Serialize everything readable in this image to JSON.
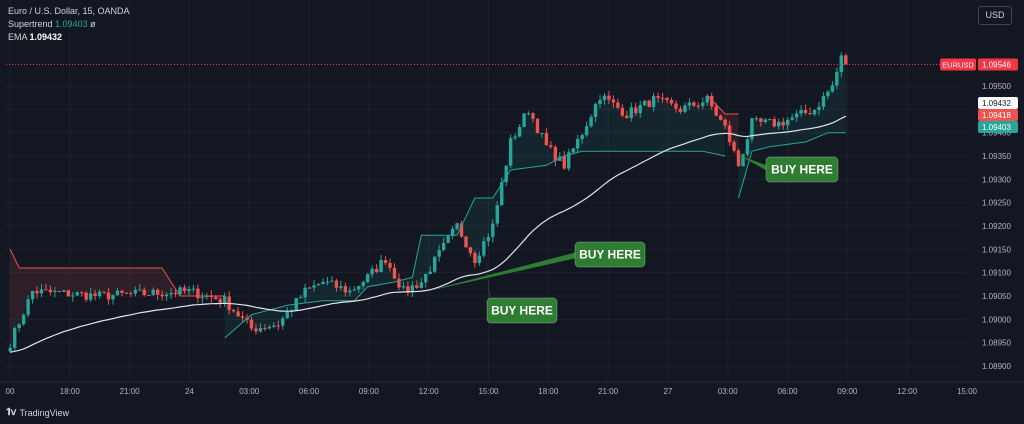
{
  "legend": {
    "instrument": "Euro / U.S. Dollar, 15, OANDA",
    "supertrend_label": "Supertrend",
    "supertrend_value": "1.09403",
    "supertrend_extra": "ø",
    "ema_label": "EMA",
    "ema_value": "1.09432"
  },
  "currency_button": "USD",
  "branding": {
    "logo_icon": "tradingview-logo-icon",
    "name": "TradingView"
  },
  "colors": {
    "background": "#131722",
    "up": "#26a69a",
    "down": "#ef5350",
    "ema": "#e0e3eb",
    "annotation": "#2e7d32",
    "price_line": "#f23645"
  },
  "chart_data": {
    "type": "candlestick",
    "symbol_tag": "EURUSD",
    "current_price": "1.09546",
    "ylim": [
      1.0887,
      1.0962
    ],
    "y_ticks": [
      "1.09500",
      "1.09450",
      "1.09400",
      "1.09350",
      "1.09300",
      "1.09250",
      "1.09200",
      "1.09150",
      "1.09100",
      "1.09050",
      "1.09000",
      "1.08950",
      "1.08900"
    ],
    "x_ticks": [
      "00",
      "18:00",
      "21:00",
      "24",
      "03:00",
      "06:00",
      "09:00",
      "12:00",
      "15:00",
      "18:00",
      "21:00",
      "27",
      "03:00",
      "06:00",
      "09:00",
      "12:00",
      "15:00"
    ],
    "price_labels": [
      {
        "text": "1.09432",
        "value": 1.09432,
        "kind": "ema"
      },
      {
        "text": "1.09418",
        "value": 1.09418,
        "kind": "down"
      },
      {
        "text": "1.09403",
        "value": 1.09403,
        "kind": "up"
      }
    ],
    "anchors": [
      {
        "i": 0,
        "p": 1.0895
      },
      {
        "i": 5,
        "p": 1.0906
      },
      {
        "i": 20,
        "p": 1.0905
      },
      {
        "i": 40,
        "p": 1.0906
      },
      {
        "i": 48,
        "p": 1.0904
      },
      {
        "i": 54,
        "p": 1.0898
      },
      {
        "i": 60,
        "p": 1.0899
      },
      {
        "i": 66,
        "p": 1.0906
      },
      {
        "i": 70,
        "p": 1.0908
      },
      {
        "i": 76,
        "p": 1.0906
      },
      {
        "i": 80,
        "p": 1.0909
      },
      {
        "i": 84,
        "p": 1.0913
      },
      {
        "i": 88,
        "p": 1.0906
      },
      {
        "i": 92,
        "p": 1.0908
      },
      {
        "i": 96,
        "p": 1.0914
      },
      {
        "i": 100,
        "p": 1.092
      },
      {
        "i": 104,
        "p": 1.0913
      },
      {
        "i": 108,
        "p": 1.092
      },
      {
        "i": 112,
        "p": 1.0938
      },
      {
        "i": 116,
        "p": 1.0945
      },
      {
        "i": 120,
        "p": 1.0937
      },
      {
        "i": 124,
        "p": 1.0933
      },
      {
        "i": 128,
        "p": 1.094
      },
      {
        "i": 132,
        "p": 1.0948
      },
      {
        "i": 138,
        "p": 1.0944
      },
      {
        "i": 144,
        "p": 1.0947
      },
      {
        "i": 150,
        "p": 1.0945
      },
      {
        "i": 156,
        "p": 1.0947
      },
      {
        "i": 160,
        "p": 1.0941
      },
      {
        "i": 163,
        "p": 1.0933
      },
      {
        "i": 166,
        "p": 1.0942
      },
      {
        "i": 172,
        "p": 1.0942
      },
      {
        "i": 180,
        "p": 1.0945
      },
      {
        "i": 184,
        "p": 1.095
      },
      {
        "i": 186,
        "p": 1.0956
      },
      {
        "i": 187,
        "p": 1.09546
      }
    ],
    "supertrend_segments": [
      {
        "trend": "down",
        "points": [
          [
            0,
            1.0915
          ],
          [
            2,
            1.0911
          ],
          [
            34,
            1.0911
          ],
          [
            38,
            1.0905
          ],
          [
            48,
            1.0905
          ]
        ]
      },
      {
        "trend": "up",
        "points": [
          [
            48,
            1.0896
          ],
          [
            54,
            1.0901
          ],
          [
            62,
            1.0903
          ],
          [
            70,
            1.0904
          ],
          [
            77,
            1.0904
          ],
          [
            80,
            1.0907
          ],
          [
            86,
            1.0908
          ],
          [
            90,
            1.0909
          ],
          [
            92,
            1.0918
          ],
          [
            100,
            1.0918
          ],
          [
            104,
            1.0926
          ],
          [
            108,
            1.0926
          ],
          [
            112,
            1.0932
          ],
          [
            120,
            1.0933
          ],
          [
            124,
            1.0935
          ],
          [
            128,
            1.0936
          ],
          [
            142,
            1.0936
          ],
          [
            150,
            1.0936
          ],
          [
            155,
            1.0936
          ],
          [
            160,
            1.0935
          ]
        ]
      },
      {
        "trend": "down",
        "points": [
          [
            156,
            1.0948
          ],
          [
            160,
            1.0944
          ],
          [
            163,
            1.0944
          ]
        ]
      },
      {
        "trend": "up",
        "points": [
          [
            163,
            1.0926
          ],
          [
            166,
            1.0936
          ],
          [
            170,
            1.0937
          ],
          [
            178,
            1.0938
          ],
          [
            183,
            1.094
          ],
          [
            187,
            1.094
          ]
        ]
      }
    ],
    "annotations": [
      {
        "label": "BUY HERE",
        "from_index": 92,
        "from_price": 1.09055
      },
      {
        "label": "BUY HERE",
        "from_index": 106,
        "from_price": 1.0917
      },
      {
        "label": "BUY HERE",
        "from_index": 163,
        "from_price": 1.0935
      }
    ]
  }
}
